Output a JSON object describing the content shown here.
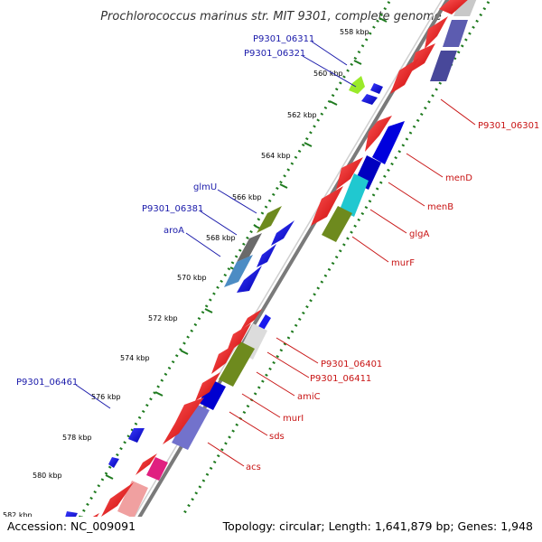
{
  "title": "Prochlorococcus marinus str. MIT 9301, complete genome",
  "accession": "Accession: NC_009091",
  "summary": "Topology: circular; Length: 1,641,879 bp; Genes: 1,948",
  "colors": {
    "forward_label": "#1a1aaa",
    "reverse_label": "#c81414",
    "backbone": "#7a7a7a",
    "tick": "#1e7a1e"
  },
  "ticks": [
    "558 kbp",
    "560 kbp",
    "562 kbp",
    "564 kbp",
    "566 kbp",
    "568 kbp",
    "570 kbp",
    "572 kbp",
    "574 kbp",
    "576 kbp",
    "578 kbp",
    "580 kbp",
    "582 kbp"
  ],
  "forward_labels": [
    "P9301_06311",
    "P9301_06321",
    "glmU",
    "P9301_06381",
    "aroA",
    "P9301_06461"
  ],
  "reverse_labels": [
    "P9301_06301",
    "menD",
    "menB",
    "glgA",
    "murF",
    "P9301_06401",
    "P9301_06411",
    "amiC",
    "murI",
    "sds",
    "acs"
  ]
}
